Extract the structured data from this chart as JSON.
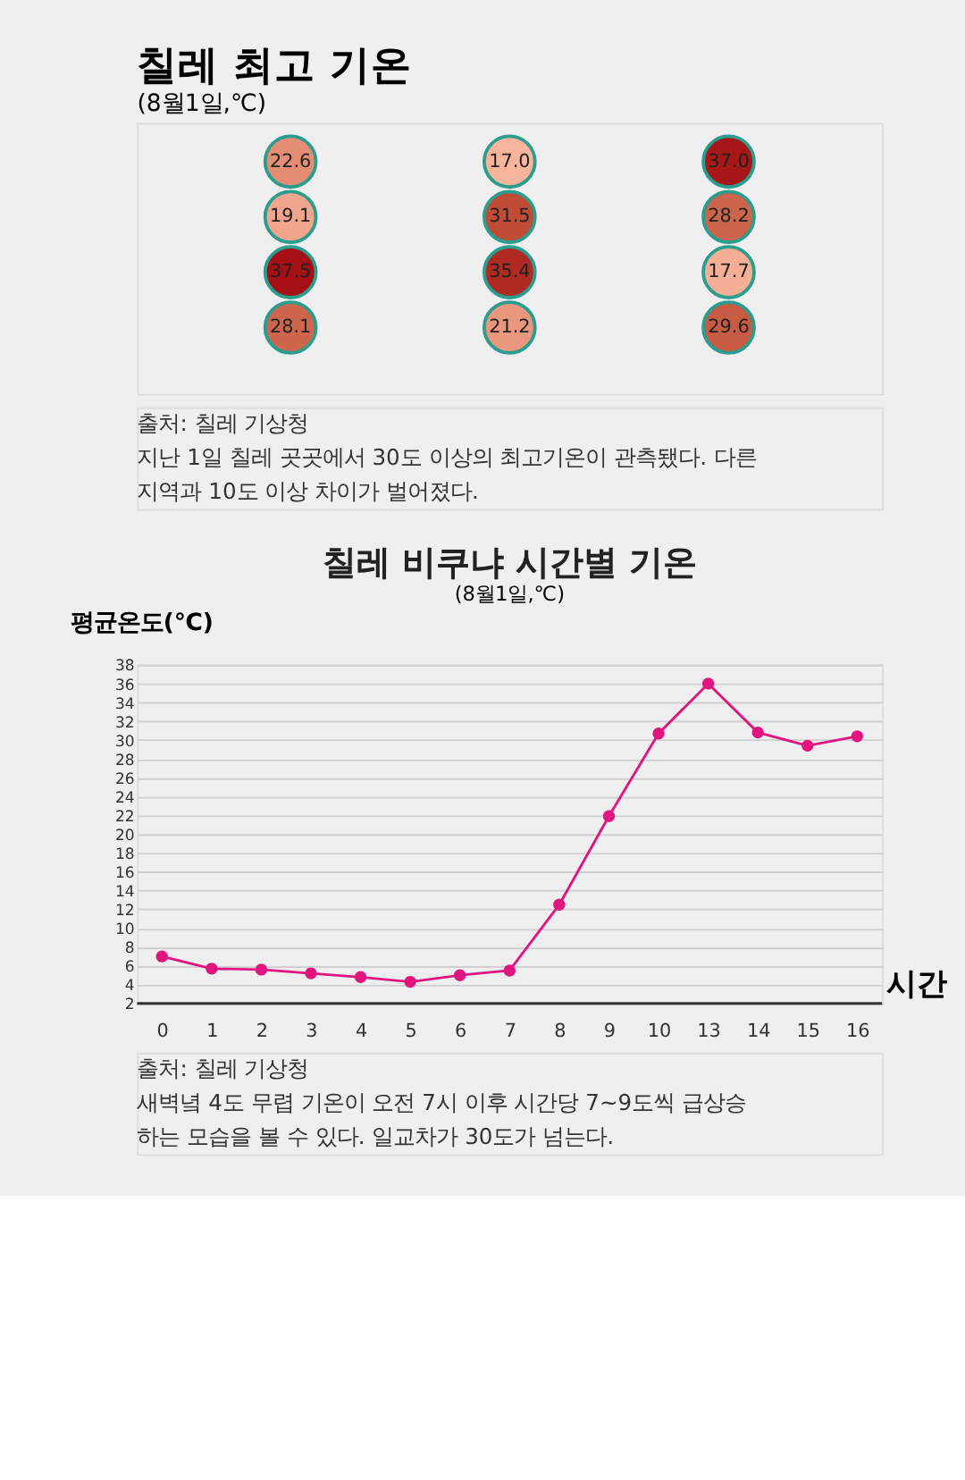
{
  "chart_data": [
    {
      "type": "other",
      "title": "칠레 최고 기온",
      "subtitle": "(8월1일,℃)",
      "values": [
        22.6,
        17.0,
        37.0,
        19.1,
        31.5,
        28.2,
        37.5,
        35.4,
        17.7,
        28.1,
        21.2,
        29.6
      ],
      "value_labels": [
        "22.6",
        "17.0",
        "37.0",
        "19.1",
        "31.5",
        "28.2",
        "37.5",
        "35.4",
        "17.7",
        "28.1",
        "21.2",
        "29.6"
      ],
      "annotations": [
        "출처: 칠레 기상청",
        "지난 1일 칠레 곳곳에서 30도 이상의 최고기온이 관측됐다. 다른 지역과 10도 이상 차이가 벌어졌다."
      ]
    },
    {
      "type": "line",
      "title": "칠레 비쿠냐 시간별 기온",
      "subtitle": "(8월1일,℃)",
      "xlabel": "시간",
      "ylabel": "평균온도(℃)",
      "categories": [
        "0",
        "1",
        "2",
        "3",
        "4",
        "5",
        "6",
        "7",
        "8",
        "9",
        "10",
        "13",
        "14",
        "15",
        "16"
      ],
      "series": [
        {
          "color": "#e0157f",
          "values": [
            7,
            5.7,
            5.6,
            5.2,
            4.8,
            4.3,
            5.0,
            5.5,
            12.5,
            21.9,
            30.7,
            36,
            30.8,
            29.4,
            30.4
          ]
        }
      ],
      "ylim": [
        2,
        38
      ],
      "yticks": [
        2,
        4,
        6,
        8,
        10,
        12,
        14,
        16,
        18,
        20,
        22,
        24,
        26,
        28,
        30,
        32,
        34,
        36,
        38
      ],
      "grid": "y",
      "marker": "circle",
      "annotations": [
        "출처: 칠레 기상청",
        "새벽녘 4도 무렵 기온이 오전 7시 이후 시간당 7~9도씩 급상승 하는 모습을 볼 수 있다. 일교차가 30도가 넘는다."
      ]
    }
  ]
}
